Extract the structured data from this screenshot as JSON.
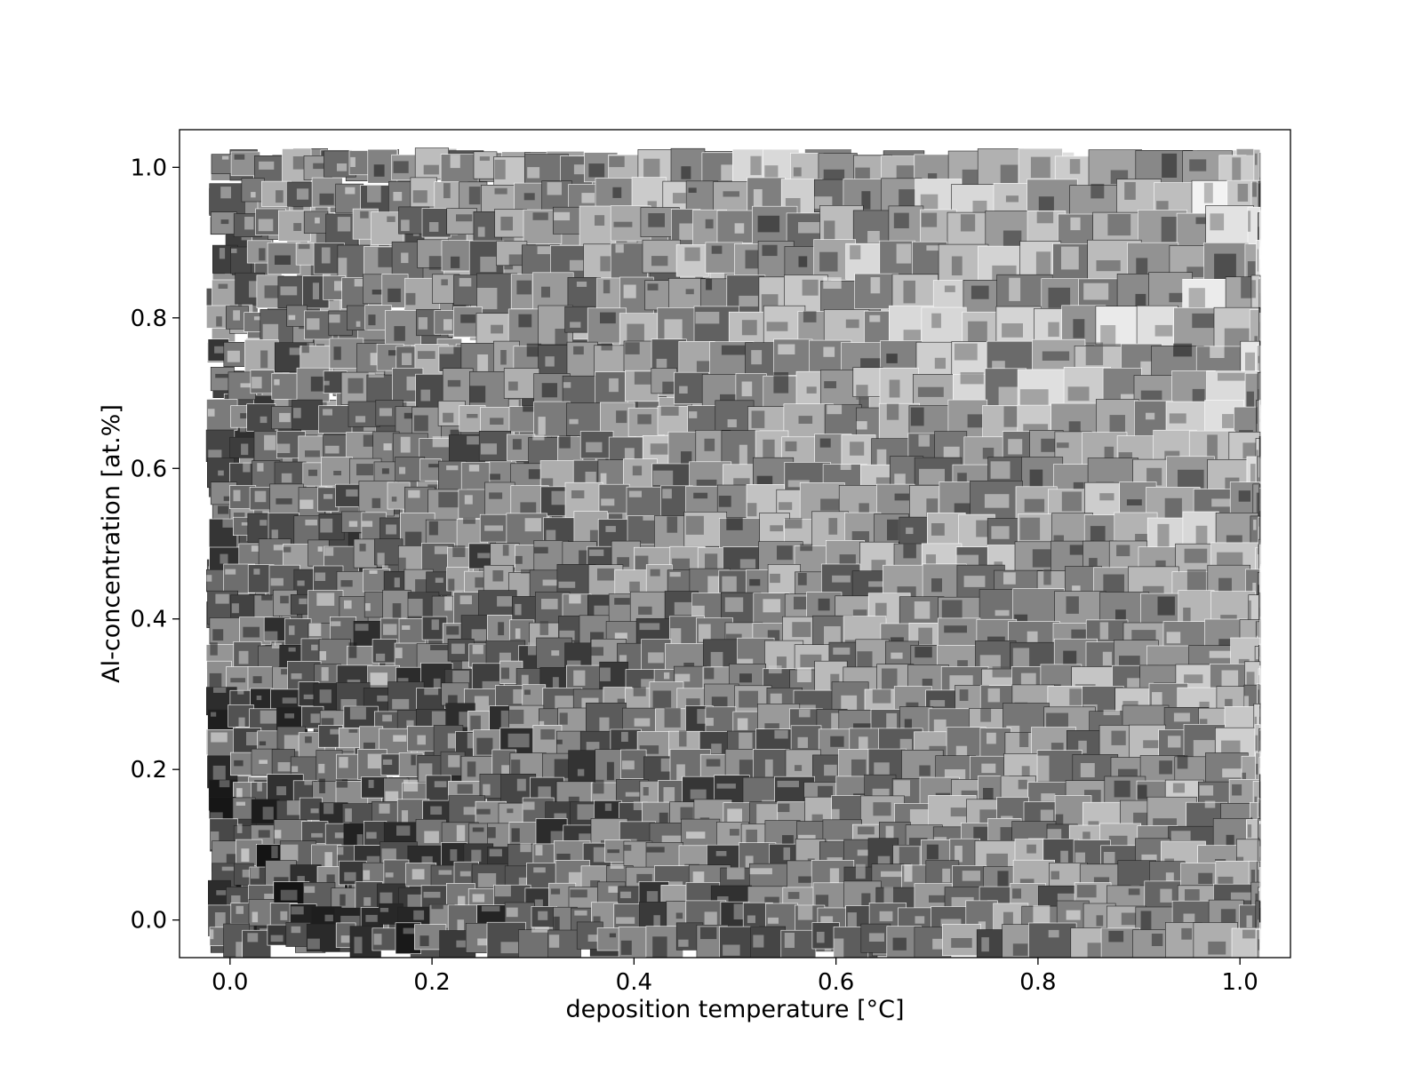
{
  "chart_data": {
    "type": "scatter",
    "title": "",
    "xlabel": "deposition temperature [°C]",
    "ylabel": "Al-concentration [at.%]",
    "xlim": [
      -0.05,
      1.05
    ],
    "ylim": [
      -0.05,
      1.05
    ],
    "x_ticks": [
      0.0,
      0.2,
      0.4,
      0.6,
      0.8,
      1.0
    ],
    "x_tick_labels": [
      "0.0",
      "0.2",
      "0.4",
      "0.6",
      "0.8",
      "1.0"
    ],
    "y_ticks": [
      0.0,
      0.2,
      0.4,
      0.6,
      0.8,
      1.0
    ],
    "y_tick_labels": [
      "0.0",
      "0.2",
      "0.4",
      "0.6",
      "0.8",
      "1.0"
    ],
    "marker": "grayscale micrograph tiles",
    "x_extent": [
      -0.02,
      1.02
    ],
    "y_extent": [
      -0.02,
      1.02
    ],
    "grid": false,
    "legend": "none",
    "colors": {
      "frame": "#000000",
      "background": "#ffffff"
    }
  }
}
